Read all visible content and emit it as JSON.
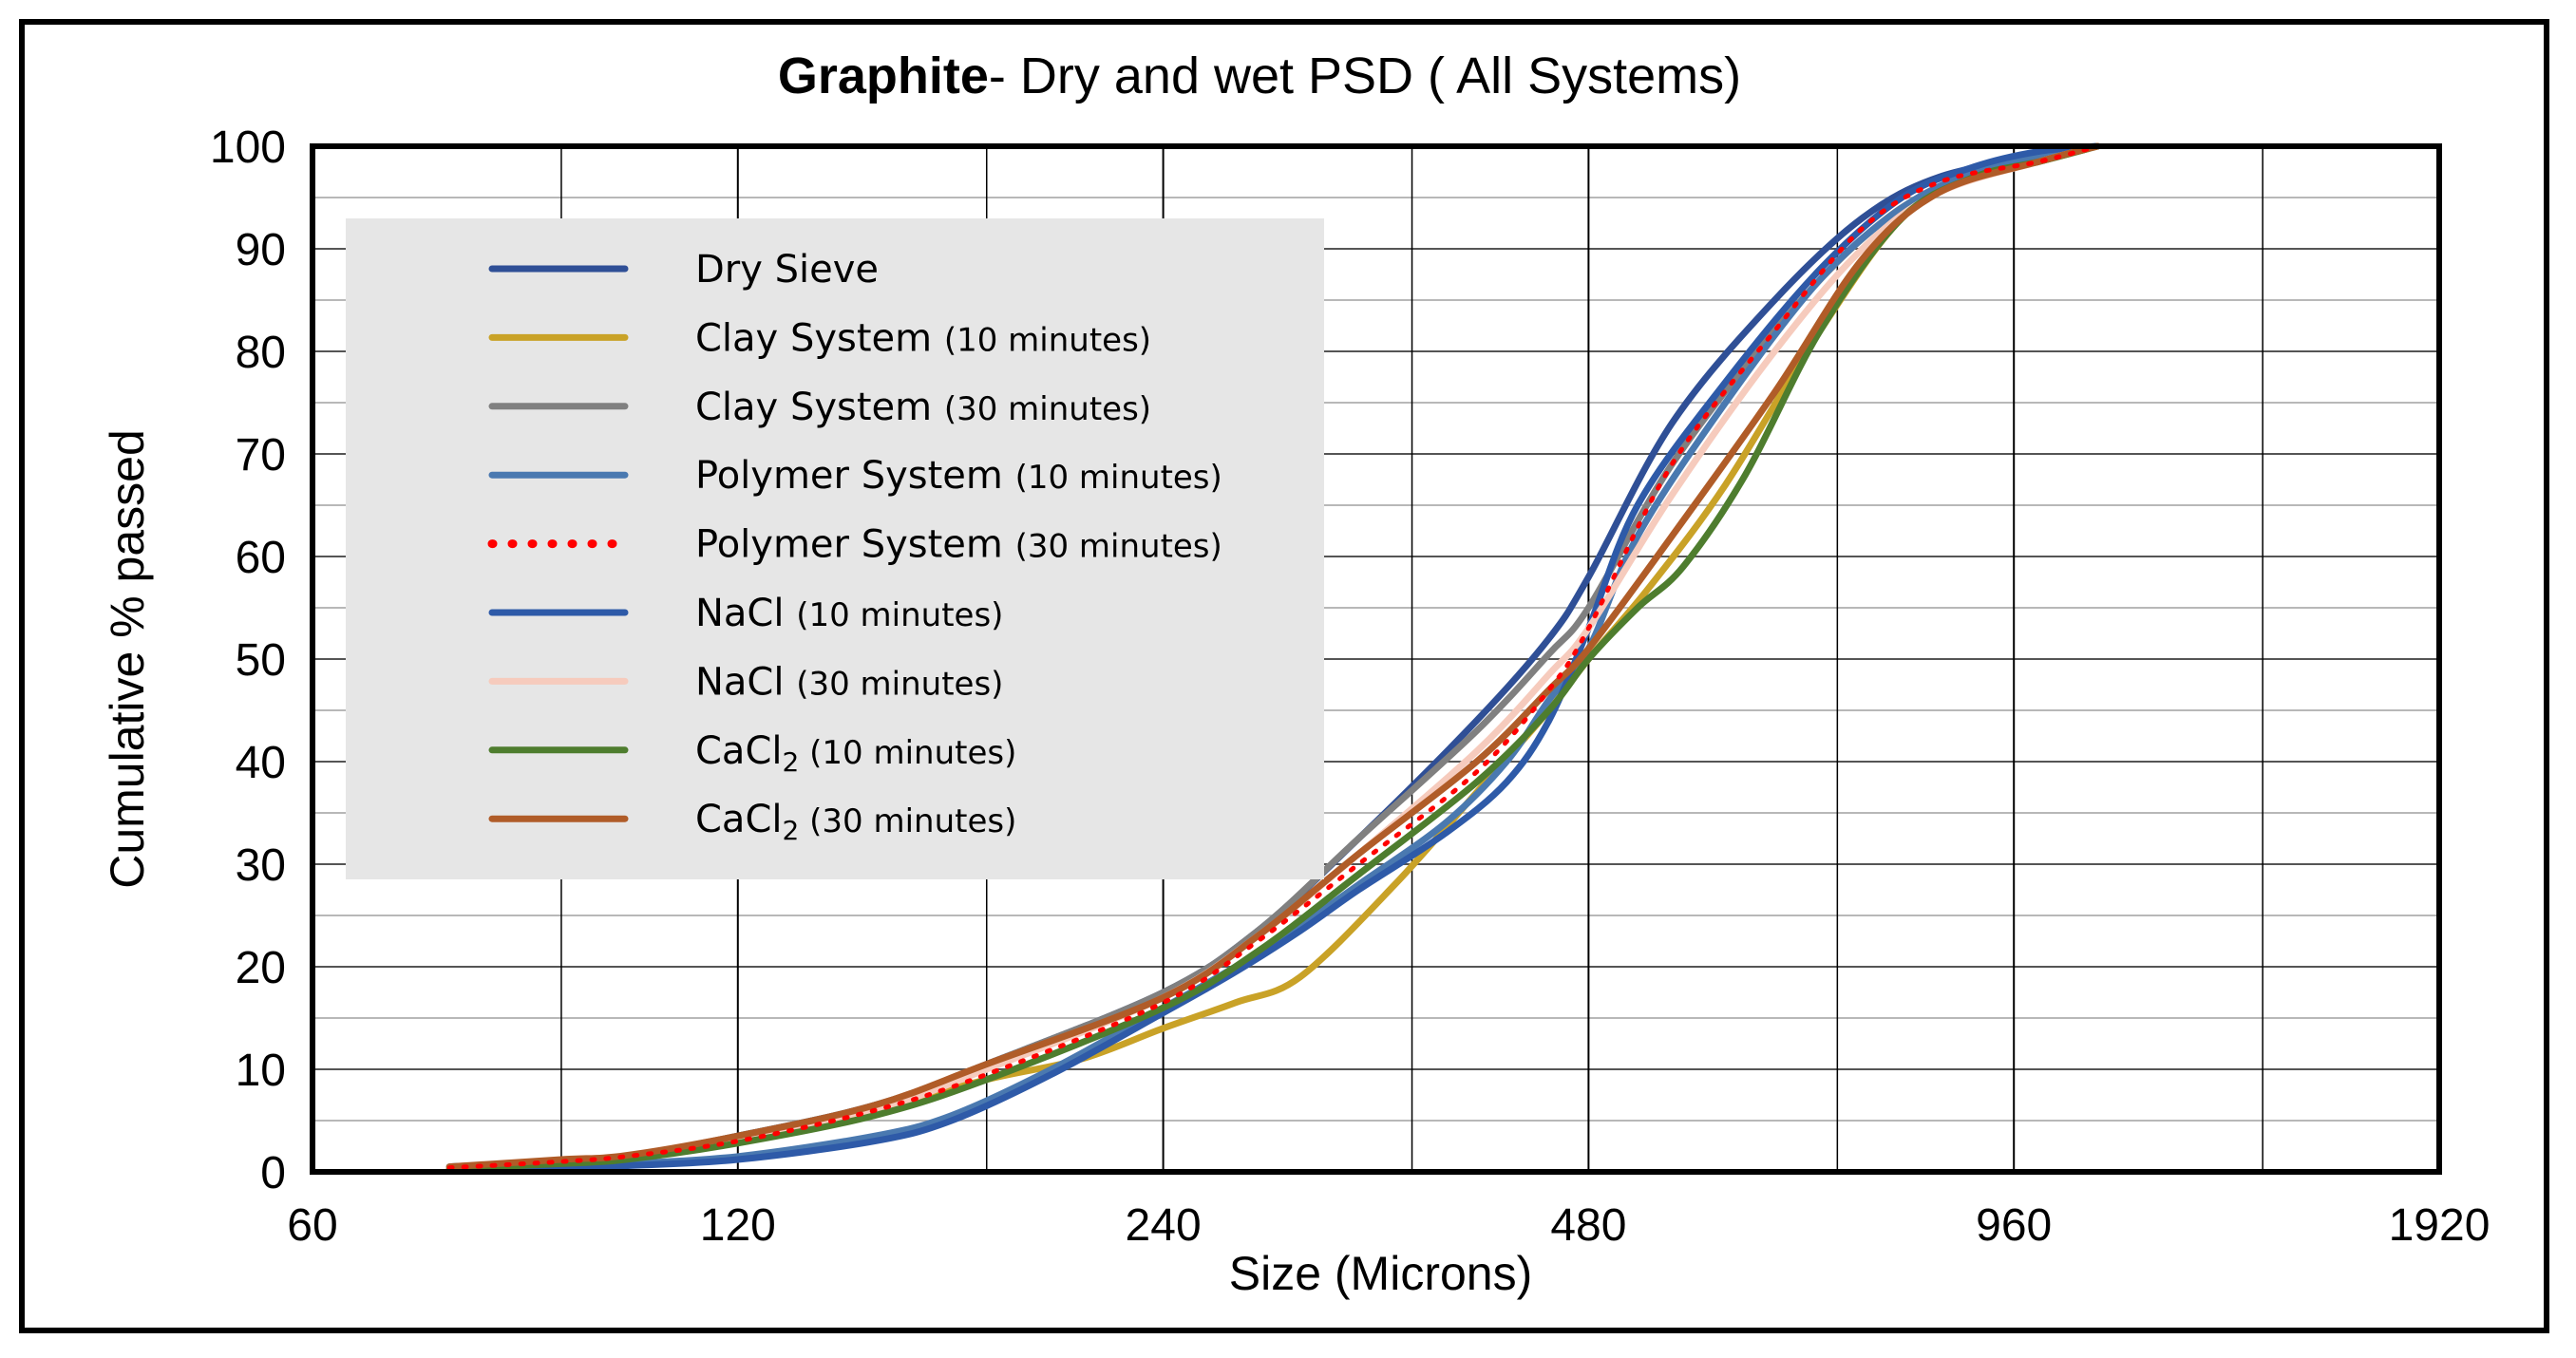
{
  "chart_data": {
    "type": "line",
    "title_bold": "Graphite",
    "title_rest": "- Dry and wet PSD ( All Systems)",
    "xlabel": "Size (Microns)",
    "ylabel": "Cumulative % passed",
    "x_scale": "log2",
    "xlim": [
      60,
      1920
    ],
    "ylim": [
      0,
      100
    ],
    "x_ticks": [
      60,
      120,
      240,
      480,
      960,
      1920
    ],
    "x_tick_labels": [
      "60",
      "120",
      "240",
      "480",
      "960",
      "1920"
    ],
    "y_ticks": [
      0,
      10,
      20,
      30,
      40,
      50,
      60,
      70,
      80,
      90,
      100
    ],
    "y_tick_labels": [
      "0",
      "10",
      "20",
      "30",
      "40",
      "50",
      "60",
      "70",
      "80",
      "90",
      "100"
    ],
    "legend_position": "top-left",
    "series": [
      {
        "name": "Dry Sieve",
        "legend_main": "Dry Sieve",
        "legend_suffix": "",
        "color": "#2f4f96",
        "dash": "solid",
        "x": [
          75,
          90,
          100,
          120,
          150,
          180,
          240,
          280,
          330,
          400,
          450,
          480,
          550,
          650,
          750,
          850,
          1000,
          1100
        ],
        "y": [
          0.5,
          1,
          1.5,
          3.5,
          6.5,
          10.5,
          17.5,
          23.5,
          32.5,
          44,
          52,
          58,
          73,
          85,
          93,
          97,
          99,
          100
        ]
      },
      {
        "name": "Clay System (10 minutes)",
        "legend_main": "Clay System ",
        "legend_suffix": "(10 minutes)",
        "color": "#c9a227",
        "dash": "solid",
        "x": [
          75,
          90,
          100,
          120,
          150,
          180,
          210,
          240,
          270,
          300,
          350,
          400,
          450,
          480,
          530,
          600,
          700,
          800,
          900,
          1000,
          1100
        ],
        "y": [
          0.3,
          1,
          1.5,
          3,
          6,
          9,
          11,
          14,
          16.5,
          19,
          28,
          37,
          45,
          50,
          57,
          67,
          82,
          93,
          97,
          98.5,
          100
        ]
      },
      {
        "name": "Clay System (30 minutes)",
        "legend_main": "Clay System ",
        "legend_suffix": "(30 minutes)",
        "color": "#808080",
        "dash": "solid",
        "x": [
          75,
          90,
          100,
          120,
          150,
          180,
          240,
          280,
          330,
          400,
          450,
          480,
          550,
          650,
          750,
          850,
          1000,
          1100
        ],
        "y": [
          0.4,
          1,
          1.5,
          3.5,
          6.5,
          10.5,
          17.5,
          23.5,
          32.5,
          43,
          50.5,
          55,
          69,
          82,
          91,
          96,
          98.5,
          100
        ]
      },
      {
        "name": "Polymer System (10 minutes)",
        "legend_main": "Polymer System ",
        "legend_suffix": "(10 minutes)",
        "color": "#4a79b0",
        "dash": "solid",
        "x": [
          75,
          90,
          100,
          120,
          150,
          170,
          200,
          240,
          270,
          300,
          330,
          380,
          420,
          450,
          480,
          520,
          600,
          700,
          800,
          900,
          1000,
          1100
        ],
        "y": [
          0.2,
          0.5,
          0.8,
          1.5,
          3.5,
          5.5,
          10,
          16,
          20,
          24,
          28,
          34,
          40,
          46,
          51,
          62,
          75,
          87,
          94,
          97.5,
          99,
          100
        ]
      },
      {
        "name": "Polymer System (30 minutes)",
        "legend_main": "Polymer System ",
        "legend_suffix": "(30 minutes)",
        "color": "#ff0000",
        "dash": "dotted",
        "x": [
          75,
          90,
          100,
          120,
          150,
          180,
          240,
          280,
          330,
          400,
          450,
          480,
          550,
          650,
          750,
          850,
          1000,
          1100
        ],
        "y": [
          0.4,
          1,
          1.5,
          3,
          6,
          9.5,
          16.5,
          22.5,
          30,
          39,
          47,
          53,
          69,
          82,
          92,
          96.5,
          98.5,
          100
        ]
      },
      {
        "name": "NaCl (10 minutes)",
        "legend_main": "NaCl ",
        "legend_suffix": "(10 minutes)",
        "color": "#2e5aa8",
        "dash": "solid",
        "x": [
          75,
          90,
          100,
          120,
          150,
          170,
          200,
          240,
          270,
          300,
          330,
          380,
          420,
          450,
          480,
          520,
          600,
          700,
          800,
          900,
          1000,
          1100
        ],
        "y": [
          0.2,
          0.4,
          0.6,
          1.2,
          3,
          5,
          9.5,
          15.5,
          19.5,
          23.5,
          27.5,
          33,
          38,
          44,
          53,
          65,
          77,
          88,
          95,
          98,
          99.5,
          100
        ]
      },
      {
        "name": "NaCl (30 minutes)",
        "legend_main": "NaCl ",
        "legend_suffix": "(30 minutes)",
        "color": "#f6cbbd",
        "dash": "solid",
        "x": [
          75,
          90,
          100,
          120,
          150,
          180,
          240,
          280,
          330,
          400,
          450,
          480,
          550,
          650,
          750,
          850,
          1000,
          1100
        ],
        "y": [
          0.4,
          1,
          1.5,
          3.2,
          6,
          10,
          17,
          23,
          31,
          41,
          48.5,
          53,
          66,
          80,
          90,
          95.5,
          98.5,
          100
        ]
      },
      {
        "name": "CaCl2 (10 minutes)",
        "legend_main": "CaCl",
        "legend_sub": "2",
        "legend_suffix": " (10 minutes)",
        "color": "#4e7d2e",
        "dash": "solid",
        "x": [
          75,
          90,
          100,
          120,
          150,
          180,
          240,
          280,
          330,
          400,
          450,
          480,
          520,
          560,
          620,
          700,
          800,
          900,
          1000,
          1100
        ],
        "y": [
          0.3,
          0.8,
          1.2,
          2.8,
          5.5,
          9,
          16,
          21.5,
          29,
          38,
          45,
          50,
          55,
          59,
          68,
          82,
          93,
          97,
          98.5,
          100
        ]
      },
      {
        "name": "CaCl2 (30 minutes)",
        "legend_main": "CaCl",
        "legend_sub": "2",
        "legend_suffix": " (30 minutes)",
        "color": "#b05c28",
        "dash": "solid",
        "x": [
          75,
          90,
          100,
          120,
          150,
          180,
          240,
          280,
          330,
          400,
          450,
          480,
          550,
          650,
          750,
          850,
          1000,
          1100
        ],
        "y": [
          0.5,
          1.2,
          1.6,
          3.5,
          6.5,
          10.5,
          17,
          23,
          31,
          40,
          47,
          51,
          62,
          76,
          89,
          95.5,
          98.5,
          100
        ]
      }
    ]
  }
}
